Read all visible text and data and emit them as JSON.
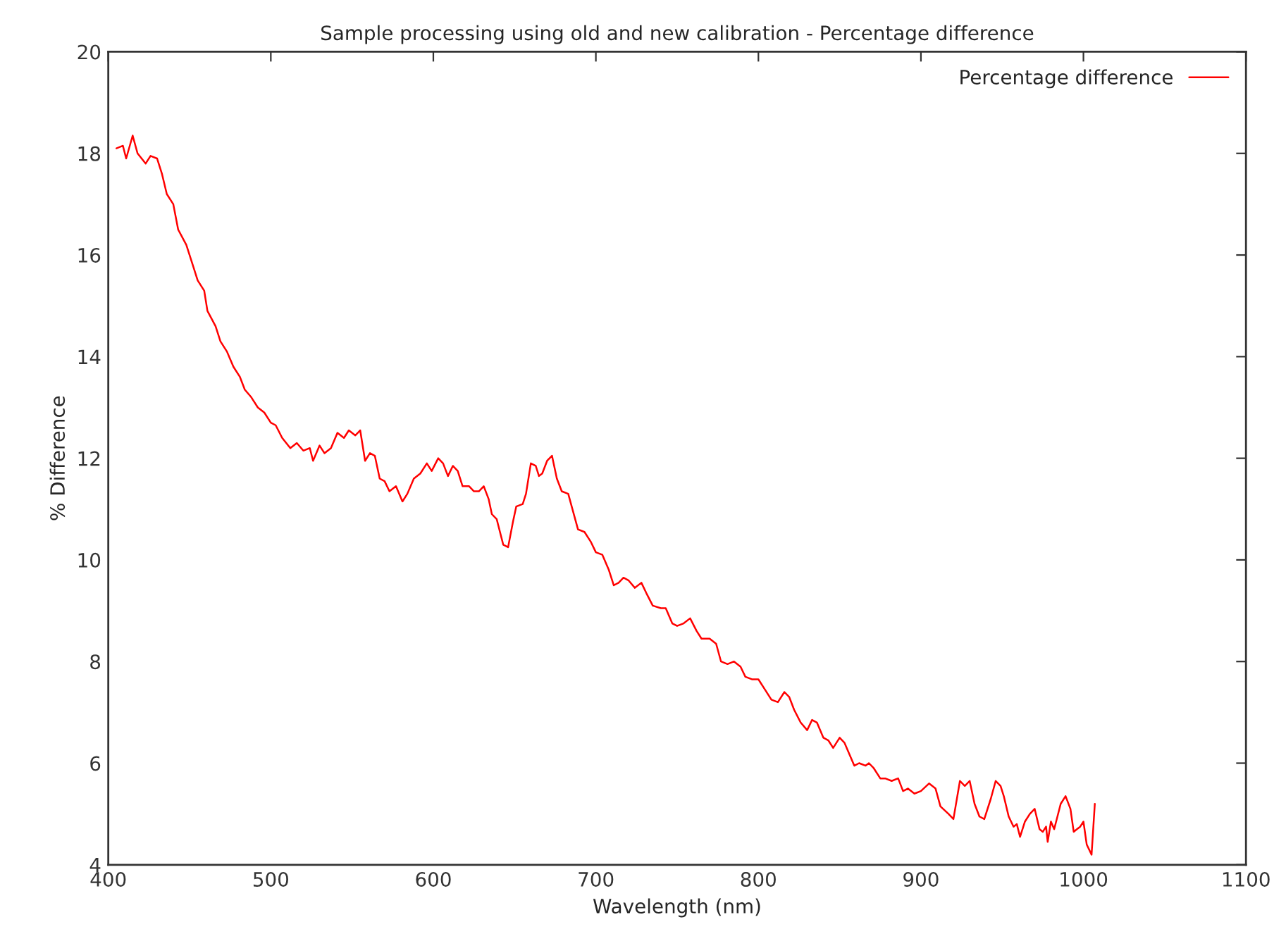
{
  "chart_data": {
    "type": "line",
    "title": "Sample processing using old and new calibration - Percentage difference",
    "xlabel": "Wavelength (nm)",
    "ylabel": "% Difference",
    "xlim": [
      400,
      1100
    ],
    "xticks": [
      400,
      500,
      600,
      700,
      800,
      900,
      1000,
      1100
    ],
    "ylim": [
      4,
      20
    ],
    "yticks": [
      4,
      6,
      8,
      10,
      12,
      14,
      16,
      18,
      20
    ],
    "grid": false,
    "legend": "top right",
    "marker": "none",
    "line_style": "solid",
    "series": [
      {
        "name": "Percentage difference",
        "color": "#ff0000",
        "x": [
          405,
          409,
          411,
          415,
          418,
          423,
          426,
          430,
          433,
          436,
          440,
          443,
          448,
          452,
          455,
          459,
          461,
          466,
          469,
          473,
          477,
          481,
          484,
          488,
          492,
          496,
          500,
          503,
          507,
          512,
          516,
          520,
          524,
          526,
          530,
          533,
          537,
          541,
          545,
          548,
          552,
          555,
          558,
          561,
          564,
          567,
          570,
          573,
          577,
          581,
          584,
          588,
          592,
          596,
          599,
          603,
          606,
          609,
          612,
          615,
          618,
          622,
          625,
          628,
          631,
          634,
          636,
          639,
          643,
          646,
          649,
          651,
          655,
          657,
          660,
          663,
          665,
          667,
          670,
          673,
          676,
          679,
          683,
          686,
          689,
          693,
          697,
          700,
          704,
          708,
          711,
          714,
          717,
          720,
          724,
          728,
          731,
          735,
          740,
          743,
          747,
          750,
          754,
          758,
          762,
          765,
          770,
          774,
          777,
          781,
          785,
          789,
          792,
          796,
          800,
          804,
          808,
          812,
          816,
          819,
          822,
          826,
          830,
          833,
          836,
          840,
          843,
          846,
          850,
          853,
          857,
          859,
          862,
          866,
          868,
          871,
          875,
          878,
          882,
          886,
          889,
          892,
          896,
          900,
          905,
          909,
          912,
          917,
          920,
          924,
          927,
          930,
          933,
          936,
          939,
          943,
          946,
          949,
          951,
          954,
          957,
          959,
          961,
          964,
          967,
          970,
          973,
          975,
          977,
          978,
          980,
          982,
          986,
          989,
          992,
          994,
          996,
          998,
          1000,
          1002,
          1005,
          1007
        ],
        "values": [
          18.1,
          18.15,
          17.9,
          18.35,
          18.0,
          17.8,
          17.95,
          17.9,
          17.6,
          17.2,
          17.0,
          16.5,
          16.2,
          15.8,
          15.5,
          15.3,
          14.9,
          14.6,
          14.3,
          14.1,
          13.8,
          13.6,
          13.35,
          13.2,
          13.0,
          12.9,
          12.7,
          12.65,
          12.4,
          12.2,
          12.3,
          12.15,
          12.2,
          11.95,
          12.25,
          12.1,
          12.2,
          12.5,
          12.4,
          12.55,
          12.45,
          12.55,
          11.95,
          12.1,
          12.05,
          11.6,
          11.55,
          11.35,
          11.45,
          11.15,
          11.3,
          11.6,
          11.7,
          11.9,
          11.75,
          12.0,
          11.9,
          11.65,
          11.85,
          11.75,
          11.45,
          11.45,
          11.35,
          11.35,
          11.45,
          11.2,
          10.9,
          10.8,
          10.3,
          10.25,
          10.75,
          11.05,
          11.1,
          11.3,
          11.9,
          11.85,
          11.65,
          11.7,
          11.95,
          12.05,
          11.6,
          11.35,
          11.3,
          10.95,
          10.6,
          10.55,
          10.35,
          10.15,
          10.1,
          9.8,
          9.5,
          9.55,
          9.65,
          9.6,
          9.45,
          9.55,
          9.35,
          9.1,
          9.05,
          9.05,
          8.75,
          8.7,
          8.75,
          8.85,
          8.6,
          8.45,
          8.45,
          8.35,
          8.0,
          7.95,
          8.0,
          7.9,
          7.7,
          7.65,
          7.65,
          7.45,
          7.25,
          7.2,
          7.4,
          7.3,
          7.05,
          6.8,
          6.65,
          6.85,
          6.8,
          6.5,
          6.45,
          6.3,
          6.5,
          6.4,
          6.1,
          5.95,
          6.0,
          5.95,
          6.0,
          5.9,
          5.7,
          5.7,
          5.65,
          5.7,
          5.45,
          5.5,
          5.4,
          5.45,
          5.6,
          5.5,
          5.15,
          5.0,
          4.9,
          5.65,
          5.55,
          5.65,
          5.2,
          4.95,
          4.9,
          5.3,
          5.65,
          5.55,
          5.35,
          4.95,
          4.75,
          4.8,
          4.55,
          4.85,
          5.0,
          5.1,
          4.7,
          4.65,
          4.75,
          4.45,
          4.85,
          4.7,
          5.2,
          5.35,
          5.1,
          4.65,
          4.7,
          4.75,
          4.85,
          4.4,
          4.2,
          5.2
        ]
      }
    ]
  }
}
